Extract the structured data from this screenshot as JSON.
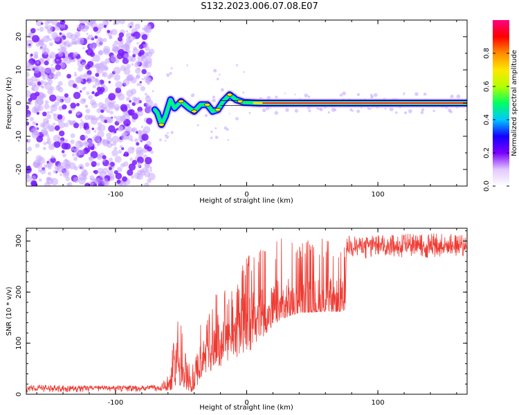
{
  "title": "S132.2023.006.07.08.E07",
  "chart_data": [
    {
      "type": "heatmap",
      "xlabel": "Height of straight line (km)",
      "ylabel": "Frequency (Hz)",
      "xlim": [
        -168,
        168
      ],
      "ylim": [
        -25,
        25
      ],
      "xticks": [
        -100,
        0,
        100
      ],
      "yticks": [
        -20,
        -10,
        0,
        10,
        20
      ],
      "colorbar": {
        "label": "Normalized spectral amplitude",
        "range": [
          0.0,
          1.0
        ],
        "ticks": [
          0.0,
          0.2,
          0.4,
          0.6,
          0.8
        ],
        "tick_labels": [
          "0.0",
          "0.2",
          "0.4",
          "0.6",
          "0.8"
        ],
        "colormap": [
          "#ffffff",
          "#e2c8ff",
          "#7a00ff",
          "#1400ff",
          "#00c8ff",
          "#00ff60",
          "#b4ff00",
          "#ffe600",
          "#ff8c00",
          "#ff0000",
          "#ff0080"
        ]
      },
      "signal_track": [
        {
          "x": -70,
          "y": -2.0
        },
        {
          "x": -68,
          "y": -3.0
        },
        {
          "x": -65,
          "y": -6.5
        },
        {
          "x": -62,
          "y": -4.0
        },
        {
          "x": -58,
          "y": 1.0
        },
        {
          "x": -55,
          "y": -1.5
        },
        {
          "x": -50,
          "y": 0.5
        },
        {
          "x": -44,
          "y": -1.5
        },
        {
          "x": -40,
          "y": -2.5
        },
        {
          "x": -35,
          "y": -0.5
        },
        {
          "x": -30,
          "y": -0.5
        },
        {
          "x": -26,
          "y": -2.5
        },
        {
          "x": -22,
          "y": -2.0
        },
        {
          "x": -18,
          "y": 0.5
        },
        {
          "x": -13,
          "y": 2.5
        },
        {
          "x": -8,
          "y": 1.0
        },
        {
          "x": -2,
          "y": 0.2
        },
        {
          "x": 10,
          "y": 0.0
        },
        {
          "x": 60,
          "y": 0.0
        },
        {
          "x": 168,
          "y": 0.0
        }
      ]
    },
    {
      "type": "line",
      "xlabel": "Height of straight line (km)",
      "ylabel": "SNR (10 * v/v)",
      "xlim": [
        -168,
        168
      ],
      "ylim": [
        0,
        325
      ],
      "xticks": [
        -100,
        0,
        100
      ],
      "yticks": [
        0,
        100,
        200,
        300
      ],
      "color": "#ee3a32",
      "series": [
        {
          "x": [
            -168,
            -150,
            -130,
            -110,
            -90,
            -75,
            -65,
            -60,
            -56,
            -53,
            -50,
            -46,
            -42,
            -38,
            -34,
            -30,
            -25,
            -20,
            -15,
            -10,
            -5,
            0,
            5,
            10,
            15,
            20,
            25,
            30,
            35,
            40,
            45,
            50,
            55,
            60,
            65,
            70,
            75,
            76,
            80,
            90,
            100,
            110,
            120,
            130,
            140,
            150,
            160,
            168
          ],
          "y": [
            12,
            12,
            12,
            12,
            12,
            12,
            12,
            16,
            45,
            75,
            40,
            22,
            15,
            55,
            68,
            78,
            92,
            103,
            112,
            123,
            132,
            138,
            147,
            155,
            161,
            166,
            170,
            173,
            175,
            176,
            177,
            177,
            178,
            178,
            178,
            178,
            178,
            290,
            291,
            291,
            291,
            291,
            291,
            291,
            291,
            291,
            291,
            291
          ],
          "upper_envelope": [
            17,
            19,
            17,
            17,
            17,
            18,
            20,
            40,
            110,
            160,
            150,
            70,
            60,
            110,
            150,
            150,
            180,
            230,
            190,
            215,
            240,
            280,
            270,
            290,
            300,
            300,
            305,
            305,
            305,
            300,
            305,
            300,
            305,
            305,
            305,
            305,
            305,
            310,
            312,
            312,
            312,
            312,
            315,
            315,
            315,
            320,
            315,
            315
          ],
          "lower_envelope": [
            4,
            4,
            4,
            4,
            4,
            5,
            5,
            5,
            10,
            20,
            15,
            8,
            5,
            15,
            25,
            40,
            50,
            45,
            60,
            65,
            75,
            80,
            90,
            105,
            120,
            135,
            145,
            150,
            155,
            160,
            160,
            160,
            162,
            162,
            162,
            162,
            162,
            275,
            270,
            265,
            270,
            270,
            265,
            270,
            265,
            270,
            270,
            270
          ]
        }
      ]
    }
  ]
}
